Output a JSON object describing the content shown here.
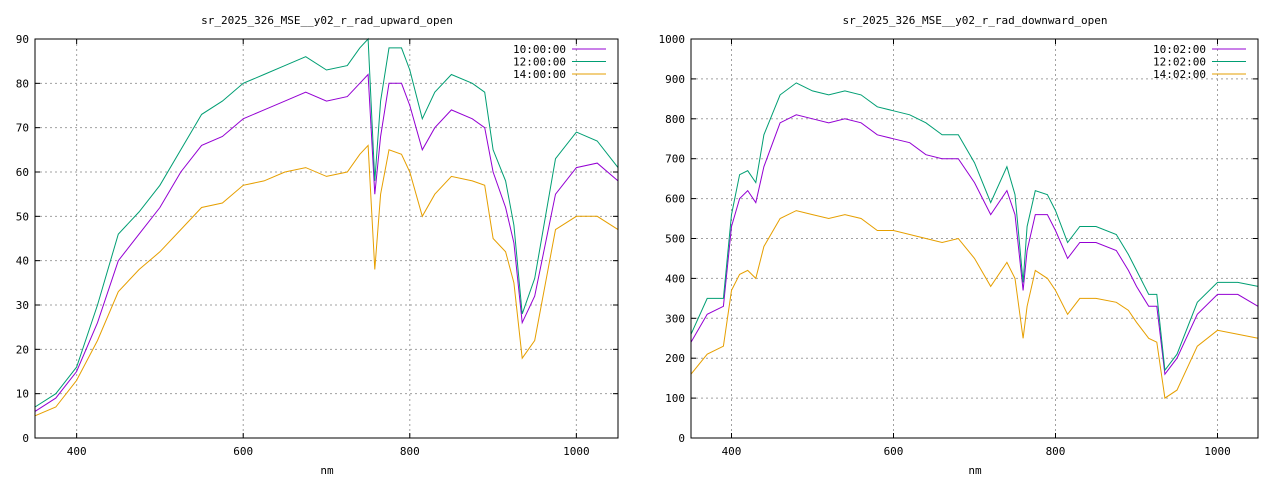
{
  "colors": {
    "series": [
      "#9400d3",
      "#009e73",
      "#e69f00"
    ],
    "grid": "#a0a0a0"
  },
  "chart_data": [
    {
      "type": "line",
      "title": "sr_2025_326_MSE__y02_r_rad_upward_open",
      "xlabel": "nm",
      "ylabel": "",
      "xlim": [
        350,
        1050
      ],
      "ylim": [
        0,
        90
      ],
      "xticks": [
        400,
        600,
        800,
        1000
      ],
      "yticks": [
        0,
        10,
        20,
        30,
        40,
        50,
        60,
        70,
        80,
        90
      ],
      "grid": true,
      "legend": "top-right",
      "x": [
        350,
        375,
        400,
        425,
        450,
        475,
        500,
        525,
        550,
        575,
        600,
        625,
        650,
        675,
        700,
        725,
        740,
        750,
        758,
        765,
        775,
        790,
        800,
        815,
        830,
        850,
        875,
        890,
        900,
        915,
        925,
        935,
        950,
        975,
        1000,
        1025,
        1050
      ],
      "series": [
        {
          "name": "10:00:00",
          "values": [
            6,
            9,
            15,
            26,
            40,
            46,
            52,
            60,
            66,
            68,
            72,
            74,
            76,
            78,
            76,
            77,
            80,
            82,
            55,
            68,
            80,
            80,
            75,
            65,
            70,
            74,
            72,
            70,
            60,
            52,
            44,
            26,
            32,
            55,
            61,
            62,
            58
          ]
        },
        {
          "name": "12:00:00",
          "values": [
            7,
            10,
            16,
            30,
            46,
            51,
            57,
            65,
            73,
            76,
            80,
            82,
            84,
            86,
            83,
            84,
            88,
            90,
            58,
            76,
            88,
            88,
            83,
            72,
            78,
            82,
            80,
            78,
            65,
            58,
            48,
            28,
            36,
            63,
            69,
            67,
            61
          ]
        },
        {
          "name": "14:00:00",
          "values": [
            5,
            7,
            13,
            22,
            33,
            38,
            42,
            47,
            52,
            53,
            57,
            58,
            60,
            61,
            59,
            60,
            64,
            66,
            38,
            55,
            65,
            64,
            60,
            50,
            55,
            59,
            58,
            57,
            45,
            42,
            35,
            18,
            22,
            47,
            50,
            50,
            47
          ]
        }
      ]
    },
    {
      "type": "line",
      "title": "sr_2025_326_MSE__y02_r_rad_downward_open",
      "xlabel": "nm",
      "ylabel": "",
      "xlim": [
        350,
        1050
      ],
      "ylim": [
        0,
        1000
      ],
      "xticks": [
        400,
        600,
        800,
        1000
      ],
      "yticks": [
        0,
        100,
        200,
        300,
        400,
        500,
        600,
        700,
        800,
        900,
        1000
      ],
      "grid": true,
      "legend": "top-right",
      "x": [
        350,
        370,
        390,
        400,
        410,
        420,
        430,
        440,
        460,
        480,
        500,
        520,
        540,
        560,
        580,
        600,
        620,
        640,
        660,
        680,
        700,
        720,
        740,
        750,
        760,
        765,
        775,
        790,
        800,
        815,
        830,
        850,
        875,
        890,
        900,
        915,
        925,
        935,
        950,
        975,
        1000,
        1025,
        1050
      ],
      "series": [
        {
          "name": "10:02:00",
          "values": [
            240,
            310,
            330,
            530,
            600,
            620,
            590,
            680,
            790,
            810,
            800,
            790,
            800,
            790,
            760,
            750,
            740,
            710,
            700,
            700,
            640,
            560,
            620,
            560,
            370,
            470,
            560,
            560,
            520,
            450,
            490,
            490,
            470,
            420,
            380,
            330,
            330,
            160,
            200,
            310,
            360,
            360,
            330
          ]
        },
        {
          "name": "12:02:00",
          "values": [
            260,
            350,
            350,
            560,
            660,
            670,
            640,
            760,
            860,
            890,
            870,
            860,
            870,
            860,
            830,
            820,
            810,
            790,
            760,
            760,
            690,
            590,
            680,
            610,
            390,
            530,
            620,
            610,
            570,
            490,
            530,
            530,
            510,
            460,
            420,
            360,
            360,
            170,
            210,
            340,
            390,
            390,
            380
          ]
        },
        {
          "name": "14:02:00",
          "values": [
            160,
            210,
            230,
            370,
            410,
            420,
            400,
            480,
            550,
            570,
            560,
            550,
            560,
            550,
            520,
            520,
            510,
            500,
            490,
            500,
            450,
            380,
            440,
            400,
            250,
            330,
            420,
            400,
            370,
            310,
            350,
            350,
            340,
            320,
            290,
            250,
            240,
            100,
            120,
            230,
            270,
            260,
            250
          ]
        }
      ]
    }
  ]
}
